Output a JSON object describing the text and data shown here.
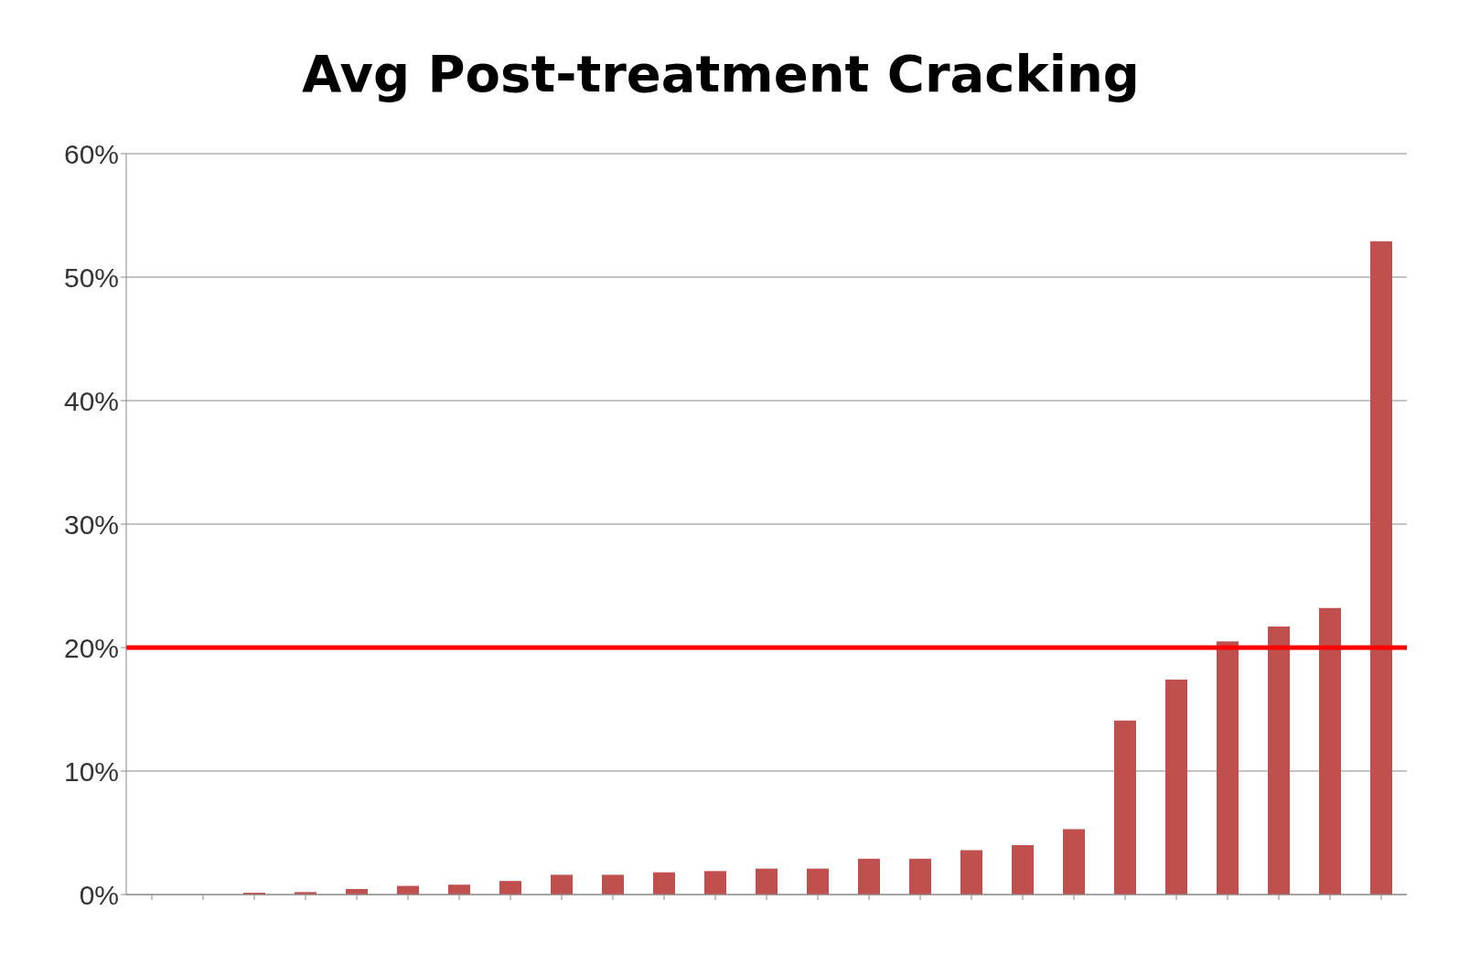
{
  "chart_data": {
    "type": "bar",
    "title": "Avg Post-treatment Cracking",
    "categories": [
      null,
      null,
      null,
      null,
      null,
      null,
      null,
      null,
      null,
      null,
      null,
      null,
      null,
      null,
      null,
      null,
      null,
      null,
      null,
      null,
      null,
      null,
      null,
      null,
      null
    ],
    "values": [
      0,
      0,
      0.15,
      0.2,
      0.45,
      0.7,
      0.8,
      1.1,
      1.6,
      1.6,
      1.8,
      1.9,
      2.1,
      2.1,
      2.9,
      2.9,
      3.6,
      4.0,
      5.3,
      14.1,
      17.4,
      20.5,
      21.7,
      23.2,
      52.9
    ],
    "color": "#c0504d",
    "ylim": [
      0,
      60
    ],
    "yticks": [
      {
        "value": 0,
        "label": "0%"
      },
      {
        "value": 10,
        "label": "10%"
      },
      {
        "value": 20,
        "label": "20%"
      },
      {
        "value": 30,
        "label": "30%"
      },
      {
        "value": 40,
        "label": "40%"
      },
      {
        "value": 50,
        "label": "50%"
      },
      {
        "value": 60,
        "label": "60%"
      }
    ],
    "grid": "y",
    "ref_lines": [
      {
        "axis": "y",
        "value": 20,
        "color": "#ff0000",
        "line_style": "solid"
      }
    ]
  }
}
